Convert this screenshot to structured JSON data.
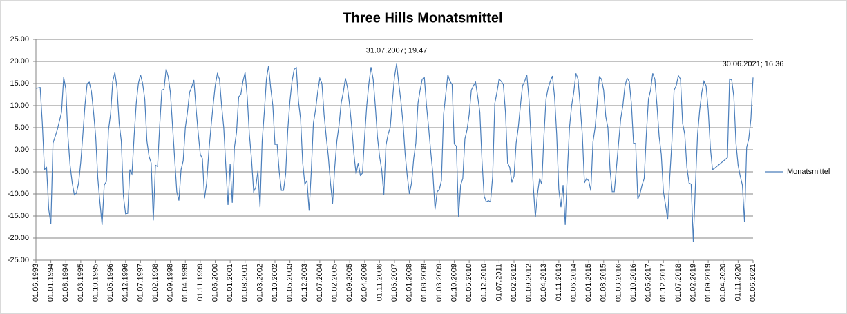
{
  "chart_data": {
    "type": "line",
    "title": "Three Hills Monatsmittel",
    "categories": [
      "01.06.1993",
      null,
      null,
      null,
      null,
      null,
      null,
      "01.01.1994",
      null,
      null,
      null,
      null,
      null,
      null,
      "01.08.1994",
      null,
      null,
      null,
      null,
      null,
      null,
      "01.03.1995",
      null,
      null,
      null,
      null,
      null,
      null,
      "01.10.1995",
      null,
      null,
      null,
      null,
      null,
      null,
      "01.05.1996",
      null,
      null,
      null,
      null,
      null,
      null,
      "01.12.1996",
      null,
      null,
      null,
      null,
      null,
      null,
      "01.07.1997",
      null,
      null,
      null,
      null,
      null,
      null,
      "01.02.1998",
      null,
      null,
      null,
      null,
      null,
      null,
      "01.09.1998",
      null,
      null,
      null,
      null,
      null,
      null,
      "01.04.1999",
      null,
      null,
      null,
      null,
      null,
      null,
      "01.11.1999",
      null,
      null,
      null,
      null,
      null,
      null,
      "01.06.2000",
      null,
      null,
      null,
      null,
      null,
      null,
      "01.01.2001",
      null,
      null,
      null,
      null,
      null,
      null,
      "01.08.2001",
      null,
      null,
      null,
      null,
      null,
      null,
      "01.03.2002",
      null,
      null,
      null,
      null,
      null,
      null,
      "01.10.2002",
      null,
      null,
      null,
      null,
      null,
      null,
      "01.05.2003",
      null,
      null,
      null,
      null,
      null,
      null,
      "01.12.2003",
      null,
      null,
      null,
      null,
      null,
      null,
      "01.07.2004",
      null,
      null,
      null,
      null,
      null,
      null,
      "01.02.2005",
      null,
      null,
      null,
      null,
      null,
      null,
      "01.09.2005",
      null,
      null,
      null,
      null,
      null,
      null,
      "01.04.2006",
      null,
      null,
      null,
      null,
      null,
      null,
      "01.11.2006",
      null,
      null,
      null,
      null,
      null,
      null,
      "01.06.2007",
      null,
      null,
      null,
      null,
      null,
      null,
      "01.01.2008",
      null,
      null,
      null,
      null,
      null,
      null,
      "01.08.2008",
      null,
      null,
      null,
      null,
      null,
      null,
      "01.03.2009",
      null,
      null,
      null,
      null,
      null,
      null,
      "01.10.2009",
      null,
      null,
      null,
      null,
      null,
      null,
      "01.05.2010",
      null,
      null,
      null,
      null,
      null,
      null,
      "01.12.2010",
      null,
      null,
      null,
      null,
      null,
      null,
      "01.07.2011",
      null,
      null,
      null,
      null,
      null,
      null,
      "01.02.2012",
      null,
      null,
      null,
      null,
      null,
      null,
      "01.09.2012",
      null,
      null,
      null,
      null,
      null,
      null,
      "01.04.2013",
      null,
      null,
      null,
      null,
      null,
      null,
      "01.11.2013",
      null,
      null,
      null,
      null,
      null,
      null,
      "01.06.2014",
      null,
      null,
      null,
      null,
      null,
      null,
      "01.01.2015",
      null,
      null,
      null,
      null,
      null,
      null,
      "01.08.2015",
      null,
      null,
      null,
      null,
      null,
      null,
      "01.03.2016",
      null,
      null,
      null,
      null,
      null,
      null,
      "01.10.2016",
      null,
      null,
      null,
      null,
      null,
      null,
      "01.05.2017",
      null,
      null,
      null,
      null,
      null,
      null,
      "01.12.2017",
      null,
      null,
      null,
      null,
      null,
      null,
      "01.07.2018",
      null,
      null,
      null,
      null,
      null,
      null,
      "01.02.2019",
      null,
      null,
      null,
      null,
      null,
      null,
      "01.09.2019",
      null,
      null,
      null,
      null,
      null,
      null,
      "01.04.2020",
      null,
      null,
      null,
      null,
      null,
      null,
      "01.11.2020",
      null,
      null,
      null,
      null,
      null,
      null,
      "01.06.2021"
    ],
    "series": [
      {
        "name": "Monatsmittel",
        "color": "#4a7ebb",
        "values": [
          13.9,
          14.0,
          14.1,
          6.0,
          -4.5,
          -4.0,
          -13.5,
          -16.8,
          1.5,
          3.0,
          4.5,
          6.5,
          8.5,
          16.4,
          13.8,
          3.0,
          -3.5,
          -7.5,
          -10.2,
          -9.8,
          -7.5,
          -2.8,
          3.5,
          10.2,
          15.0,
          15.3,
          13.2,
          8.5,
          3.0,
          -6.5,
          -12.0,
          -17.0,
          -8.0,
          -7.2,
          4.5,
          8.2,
          15.5,
          17.5,
          14.0,
          6.0,
          2.0,
          -10.5,
          -14.5,
          -14.4,
          -4.5,
          -5.5,
          3.0,
          10.5,
          15.0,
          17.0,
          15.0,
          11.5,
          2.0,
          -1.5,
          -3.0,
          -16.0,
          -3.5,
          -3.8,
          5.5,
          13.5,
          13.7,
          18.3,
          16.5,
          13.0,
          5.5,
          -2.0,
          -9.5,
          -11.5,
          -4.5,
          -2.5,
          5.0,
          8.5,
          13.0,
          14.2,
          15.8,
          9.5,
          4.0,
          -1.0,
          -2.0,
          -11.0,
          -7.5,
          -0.5,
          5.0,
          10.0,
          14.5,
          17.2,
          16.0,
          10.0,
          5.0,
          -4.0,
          -12.5,
          -3.2,
          -12.0,
          0.5,
          4.0,
          12.0,
          12.5,
          15.5,
          17.5,
          12.0,
          3.5,
          -2.0,
          -9.5,
          -8.5,
          -4.8,
          -13.0,
          2.0,
          8.5,
          16.0,
          19.0,
          14.0,
          10.0,
          1.2,
          1.3,
          -5.0,
          -9.2,
          -9.2,
          -5.5,
          4.5,
          11.0,
          15.5,
          18.2,
          18.6,
          11.0,
          7.0,
          -3.0,
          -7.8,
          -7.0,
          -13.8,
          -5.0,
          6.0,
          9.0,
          13.0,
          16.2,
          15.0,
          8.0,
          3.0,
          -1.5,
          -7.5,
          -12.2,
          -4.0,
          2.0,
          5.5,
          10.5,
          13.0,
          16.2,
          14.0,
          10.0,
          5.0,
          -1.0,
          -5.5,
          -3.0,
          -5.8,
          -5.3,
          3.0,
          10.0,
          15.0,
          18.7,
          16.0,
          10.0,
          3.0,
          -1.5,
          -4.5,
          -10.2,
          1.0,
          3.5,
          5.0,
          11.0,
          16.5,
          19.47,
          15.0,
          11.0,
          6.0,
          -1.0,
          -6.0,
          -10.0,
          -7.5,
          -2.0,
          1.5,
          10.5,
          13.5,
          16.0,
          16.3,
          10.0,
          5.0,
          -0.5,
          -5.5,
          -13.5,
          -9.5,
          -9.0,
          -7.0,
          8.0,
          12.5,
          17.0,
          15.5,
          14.8,
          1.3,
          0.8,
          -15.2,
          -8.0,
          -6.5,
          2.5,
          4.5,
          8.0,
          13.5,
          14.5,
          15.3,
          12.0,
          8.5,
          -2.5,
          -10.5,
          -11.8,
          -11.5,
          -11.8,
          -6.0,
          10.5,
          13.0,
          16.0,
          15.5,
          14.8,
          8.5,
          -3.0,
          -4.0,
          -7.4,
          -6.0,
          1.5,
          5.0,
          10.0,
          14.5,
          15.5,
          17.0,
          11.5,
          2.5,
          -8.0,
          -15.3,
          -10.0,
          -6.5,
          -7.8,
          3.0,
          11.5,
          14.0,
          15.5,
          16.7,
          12.0,
          3.5,
          -9.0,
          -13.0,
          -8.0,
          -17.0,
          -5.0,
          5.0,
          10.0,
          13.0,
          17.3,
          16.0,
          10.0,
          3.5,
          -7.5,
          -6.5,
          -7.0,
          -9.3,
          1.8,
          5.0,
          10.5,
          16.5,
          16.0,
          13.5,
          7.5,
          5.0,
          -4.5,
          -9.5,
          -9.5,
          -4.0,
          1.5,
          7.0,
          10.0,
          14.5,
          16.2,
          15.5,
          10.5,
          1.5,
          1.4,
          -11.2,
          -10.0,
          -8.0,
          -6.5,
          3.5,
          11.5,
          13.5,
          17.3,
          16.0,
          10.0,
          3.0,
          -1.0,
          -9.5,
          -12.5,
          -15.8,
          -6.0,
          2.0,
          13.5,
          14.5,
          16.8,
          16.0,
          6.0,
          3.5,
          -4.0,
          -7.5,
          -7.8,
          -20.8,
          -8.0,
          3.5,
          9.0,
          13.0,
          15.5,
          14.5,
          9.0,
          0.5,
          -4.5,
          -4.2,
          -3.8,
          -3.4,
          -3.0,
          -2.6,
          -2.2,
          -1.8,
          16.0,
          15.8,
          12.0,
          1.5,
          -3.5,
          -6.0,
          -8.0,
          -16.4,
          0.5,
          2.5,
          7.0,
          16.36
        ],
        "value_labels": [
          null,
          null,
          null,
          null,
          null,
          null,
          null,
          null,
          null,
          null,
          null,
          null,
          null,
          null,
          null,
          null,
          null,
          null,
          null,
          null,
          null,
          null,
          null,
          null,
          null,
          null,
          null,
          null,
          null,
          null,
          null,
          null,
          null,
          null,
          null,
          null,
          null,
          null,
          null,
          null,
          null,
          null,
          null,
          null,
          null,
          null,
          null,
          null,
          null,
          null,
          null,
          null,
          null,
          null,
          null,
          null,
          null,
          null,
          null,
          null,
          null,
          null,
          null,
          null,
          null,
          null,
          null,
          null,
          null,
          null,
          null,
          null,
          null,
          null,
          null,
          null,
          null,
          null,
          null,
          null,
          null,
          null,
          null,
          null,
          null,
          null,
          null,
          null,
          null,
          null,
          null,
          null,
          null,
          null,
          null,
          null,
          null,
          null,
          null,
          null,
          null,
          null,
          null,
          null,
          null,
          null,
          null,
          null,
          null,
          null,
          null,
          null,
          null,
          null,
          null,
          null,
          null,
          null,
          null,
          null,
          null,
          null,
          null,
          null,
          null,
          null,
          null,
          null,
          null,
          null,
          null,
          null,
          null,
          null,
          null,
          null,
          null,
          null,
          null,
          null,
          null,
          null,
          null,
          null,
          null,
          null,
          null,
          null,
          null,
          null,
          null,
          null,
          null,
          null,
          null,
          null,
          null,
          null,
          null,
          null,
          null,
          null,
          null,
          null,
          null,
          null,
          null,
          null,
          null,
          "31.07.2007; 19.47",
          null,
          null,
          null,
          null,
          null,
          null,
          null,
          null,
          null,
          null,
          null,
          null,
          null,
          null,
          null,
          null,
          null,
          null,
          null,
          null,
          null,
          null,
          null,
          null,
          null,
          null,
          null,
          null,
          null,
          null,
          null,
          null,
          null,
          null,
          null,
          null,
          null,
          null,
          null,
          null,
          null,
          null,
          null,
          null,
          null,
          null,
          null,
          null,
          null,
          null,
          null,
          null,
          null,
          null,
          null,
          null,
          null,
          null,
          null,
          null,
          null,
          null,
          null,
          null,
          null,
          null,
          null,
          null,
          null,
          null,
          null,
          null,
          null,
          null,
          null,
          null,
          null,
          null,
          null,
          null,
          null,
          null,
          null,
          null,
          null,
          null,
          null,
          null,
          null,
          null,
          null,
          null,
          null,
          null,
          null,
          null,
          null,
          null,
          null,
          null,
          null,
          null,
          null,
          null,
          null,
          null,
          null,
          null,
          null,
          null,
          null,
          null,
          null,
          null,
          null,
          null,
          null,
          null,
          null,
          null,
          null,
          null,
          null,
          null,
          null,
          null,
          null,
          null,
          null,
          null,
          null,
          null,
          null,
          null,
          null,
          null,
          null,
          null,
          null,
          null,
          null,
          null,
          null,
          null,
          null,
          null,
          null,
          null,
          null,
          null,
          null,
          null,
          null,
          null,
          null,
          null,
          null,
          null,
          null,
          null,
          null,
          null,
          null,
          null,
          null,
          null,
          "30.06.2021; 16.36"
        ]
      }
    ],
    "ylim": [
      -25,
      25
    ],
    "yticks": [
      {
        "value": -25,
        "label": "-25.00"
      },
      {
        "value": -20,
        "label": "-20.00"
      },
      {
        "value": -15,
        "label": "-15.00"
      },
      {
        "value": -10,
        "label": "-10.00"
      },
      {
        "value": -5,
        "label": "-5.00"
      },
      {
        "value": 0,
        "label": "0.00"
      },
      {
        "value": 5,
        "label": "5.00"
      },
      {
        "value": 10,
        "label": "10.00"
      },
      {
        "value": 15,
        "label": "15.00"
      },
      {
        "value": 20,
        "label": "20.00"
      },
      {
        "value": 25,
        "label": "25.00"
      }
    ],
    "grid": true,
    "legend": "right"
  }
}
